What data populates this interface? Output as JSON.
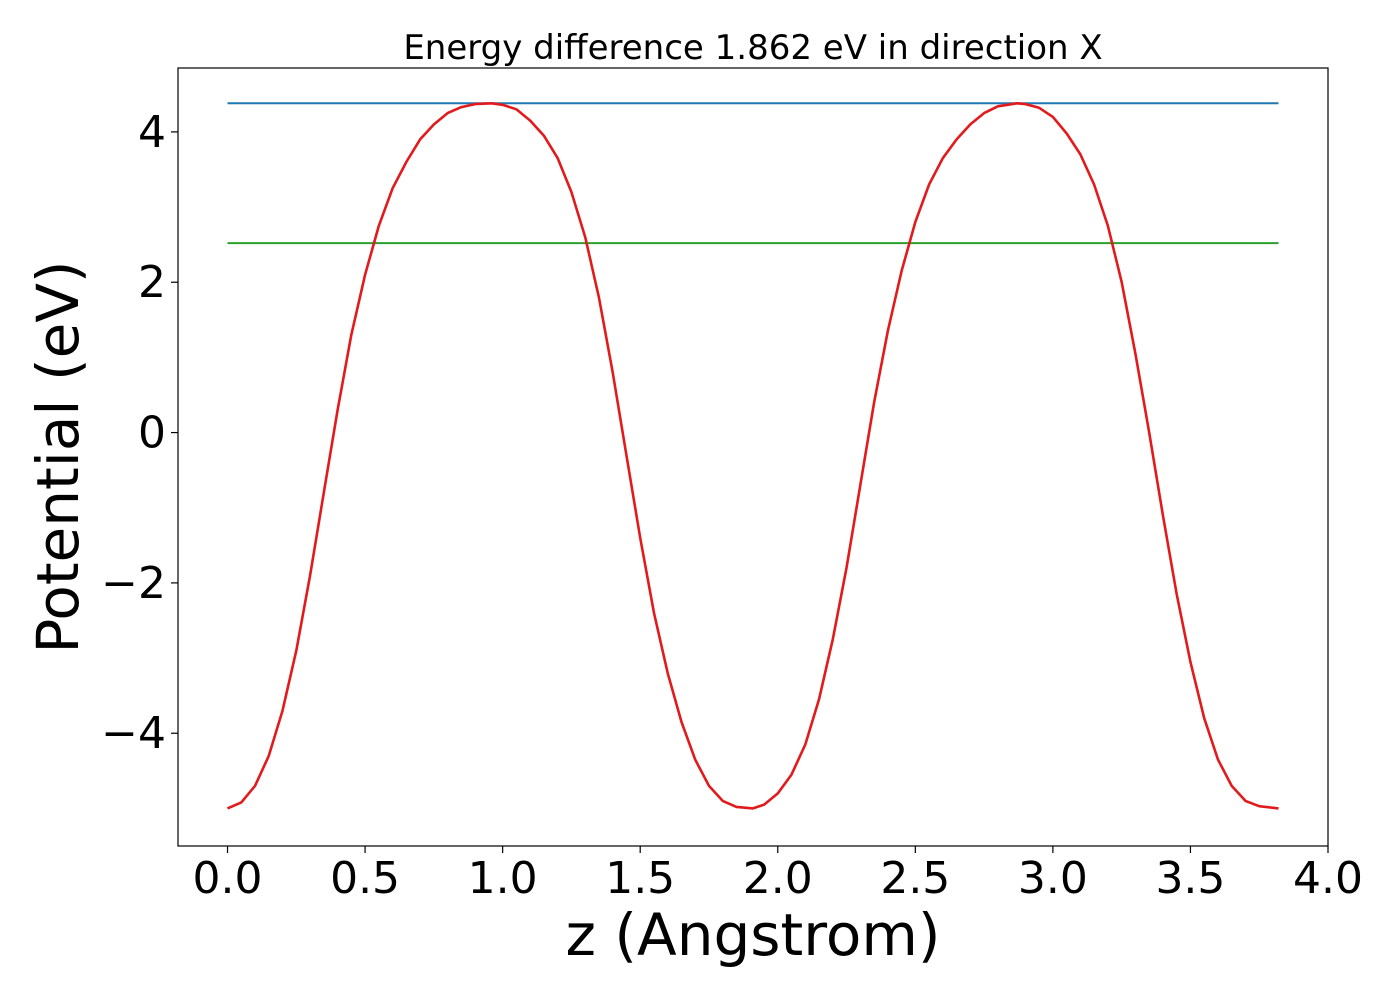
{
  "chart_data": {
    "type": "line",
    "title": "Energy difference 1.862 eV in direction X",
    "xlabel": "z (Angstrom)",
    "ylabel": "Potential (eV)",
    "xlim": [
      -0.18,
      4.0
    ],
    "ylim": [
      -5.5,
      4.85
    ],
    "xticks": [
      0.0,
      0.5,
      1.0,
      1.5,
      2.0,
      2.5,
      3.0,
      3.5,
      4.0
    ],
    "xtick_labels": [
      "0.0",
      "0.5",
      "1.0",
      "1.5",
      "2.0",
      "2.5",
      "3.0",
      "3.5",
      "4.0"
    ],
    "yticks": [
      -4,
      -2,
      0,
      2,
      4
    ],
    "ytick_labels": [
      "−4",
      "−2",
      "0",
      "2",
      "4"
    ],
    "grid": false,
    "legend": "none",
    "series": [
      {
        "kind": "hline",
        "color": "#1f77b4",
        "x": [
          0.0,
          3.82
        ],
        "y": [
          4.38,
          4.38
        ]
      },
      {
        "kind": "hline",
        "color": "#2ca02c",
        "x": [
          0.0,
          3.82
        ],
        "y": [
          2.52,
          2.52
        ]
      },
      {
        "kind": "line",
        "color": "#e31a1c",
        "x": [
          0.0,
          0.05,
          0.1,
          0.15,
          0.2,
          0.25,
          0.3,
          0.35,
          0.4,
          0.45,
          0.5,
          0.55,
          0.6,
          0.65,
          0.7,
          0.75,
          0.8,
          0.85,
          0.9,
          0.96,
          1.0,
          1.05,
          1.1,
          1.15,
          1.2,
          1.25,
          1.3,
          1.35,
          1.4,
          1.45,
          1.5,
          1.55,
          1.6,
          1.65,
          1.7,
          1.75,
          1.8,
          1.85,
          1.91,
          1.95,
          2.0,
          2.05,
          2.1,
          2.15,
          2.2,
          2.25,
          2.3,
          2.35,
          2.4,
          2.45,
          2.5,
          2.55,
          2.6,
          2.65,
          2.7,
          2.75,
          2.8,
          2.87,
          2.9,
          2.95,
          3.0,
          3.05,
          3.1,
          3.15,
          3.2,
          3.25,
          3.3,
          3.35,
          3.4,
          3.45,
          3.5,
          3.55,
          3.6,
          3.65,
          3.7,
          3.75,
          3.82
        ],
        "y": [
          -5.0,
          -4.92,
          -4.7,
          -4.3,
          -3.7,
          -2.9,
          -1.9,
          -0.8,
          0.3,
          1.3,
          2.1,
          2.75,
          3.25,
          3.6,
          3.9,
          4.1,
          4.25,
          4.33,
          4.37,
          4.38,
          4.36,
          4.3,
          4.15,
          3.95,
          3.65,
          3.2,
          2.6,
          1.8,
          0.8,
          -0.3,
          -1.4,
          -2.4,
          -3.2,
          -3.85,
          -4.35,
          -4.7,
          -4.9,
          -4.98,
          -5.0,
          -4.95,
          -4.8,
          -4.55,
          -4.15,
          -3.55,
          -2.75,
          -1.8,
          -0.7,
          0.4,
          1.35,
          2.15,
          2.8,
          3.3,
          3.65,
          3.9,
          4.1,
          4.25,
          4.34,
          4.38,
          4.37,
          4.32,
          4.2,
          3.98,
          3.7,
          3.3,
          2.75,
          2.0,
          1.05,
          0.0,
          -1.1,
          -2.15,
          -3.05,
          -3.8,
          -4.35,
          -4.7,
          -4.9,
          -4.97,
          -5.0
        ]
      }
    ]
  }
}
